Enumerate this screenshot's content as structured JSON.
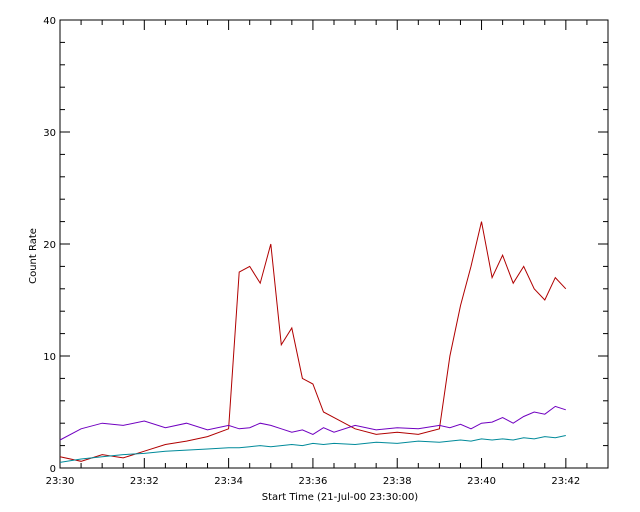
{
  "chart_data": {
    "type": "line",
    "title": "",
    "xlabel": "Start Time (21-Jul-00 23:30:00)",
    "ylabel": "Count Rate",
    "xlim": [
      "23:30",
      "23:43"
    ],
    "ylim": [
      0,
      40
    ],
    "x_ticks": [
      "23:30",
      "23:32",
      "23:34",
      "23:36",
      "23:38",
      "23:40",
      "23:42"
    ],
    "y_ticks": [
      0,
      10,
      20,
      30,
      40
    ],
    "grid": false,
    "x": [
      "23:30:00",
      "23:30:30",
      "23:31:00",
      "23:31:30",
      "23:32:00",
      "23:32:30",
      "23:33:00",
      "23:33:30",
      "23:34:00",
      "23:34:15",
      "23:34:30",
      "23:34:45",
      "23:35:00",
      "23:35:15",
      "23:35:30",
      "23:35:45",
      "23:36:00",
      "23:36:15",
      "23:36:30",
      "23:37:00",
      "23:37:30",
      "23:38:00",
      "23:38:30",
      "23:39:00",
      "23:39:15",
      "23:39:30",
      "23:39:45",
      "23:40:00",
      "23:40:15",
      "23:40:30",
      "23:40:45",
      "23:41:00",
      "23:41:15",
      "23:41:30",
      "23:41:45",
      "23:42:00"
    ],
    "series": [
      {
        "color": "#b00000",
        "values": [
          1.0,
          0.6,
          1.2,
          0.9,
          1.5,
          2.1,
          2.4,
          2.8,
          3.5,
          17.5,
          18.0,
          16.5,
          20.0,
          11.0,
          12.5,
          8.0,
          7.5,
          5.0,
          4.5,
          3.5,
          3.0,
          3.2,
          3.0,
          3.5,
          10.0,
          14.5,
          18.0,
          22.0,
          17.0,
          19.0,
          16.5,
          18.0,
          16.0,
          15.0,
          17.0,
          16.0
        ]
      },
      {
        "color": "#7000c0",
        "values": [
          2.5,
          3.5,
          4.0,
          3.8,
          4.2,
          3.6,
          4.0,
          3.4,
          3.8,
          3.5,
          3.6,
          4.0,
          3.8,
          3.5,
          3.2,
          3.4,
          3.0,
          3.6,
          3.2,
          3.8,
          3.4,
          3.6,
          3.5,
          3.8,
          3.6,
          3.9,
          3.5,
          4.0,
          4.1,
          4.5,
          4.0,
          4.6,
          5.0,
          4.8,
          5.5,
          5.2
        ]
      },
      {
        "color": "#008a9a",
        "values": [
          0.5,
          0.8,
          1.0,
          1.2,
          1.3,
          1.5,
          1.6,
          1.7,
          1.8,
          1.8,
          1.9,
          2.0,
          1.9,
          2.0,
          2.1,
          2.0,
          2.2,
          2.1,
          2.2,
          2.1,
          2.3,
          2.2,
          2.4,
          2.3,
          2.4,
          2.5,
          2.4,
          2.6,
          2.5,
          2.6,
          2.5,
          2.7,
          2.6,
          2.8,
          2.7,
          2.9
        ]
      }
    ]
  }
}
